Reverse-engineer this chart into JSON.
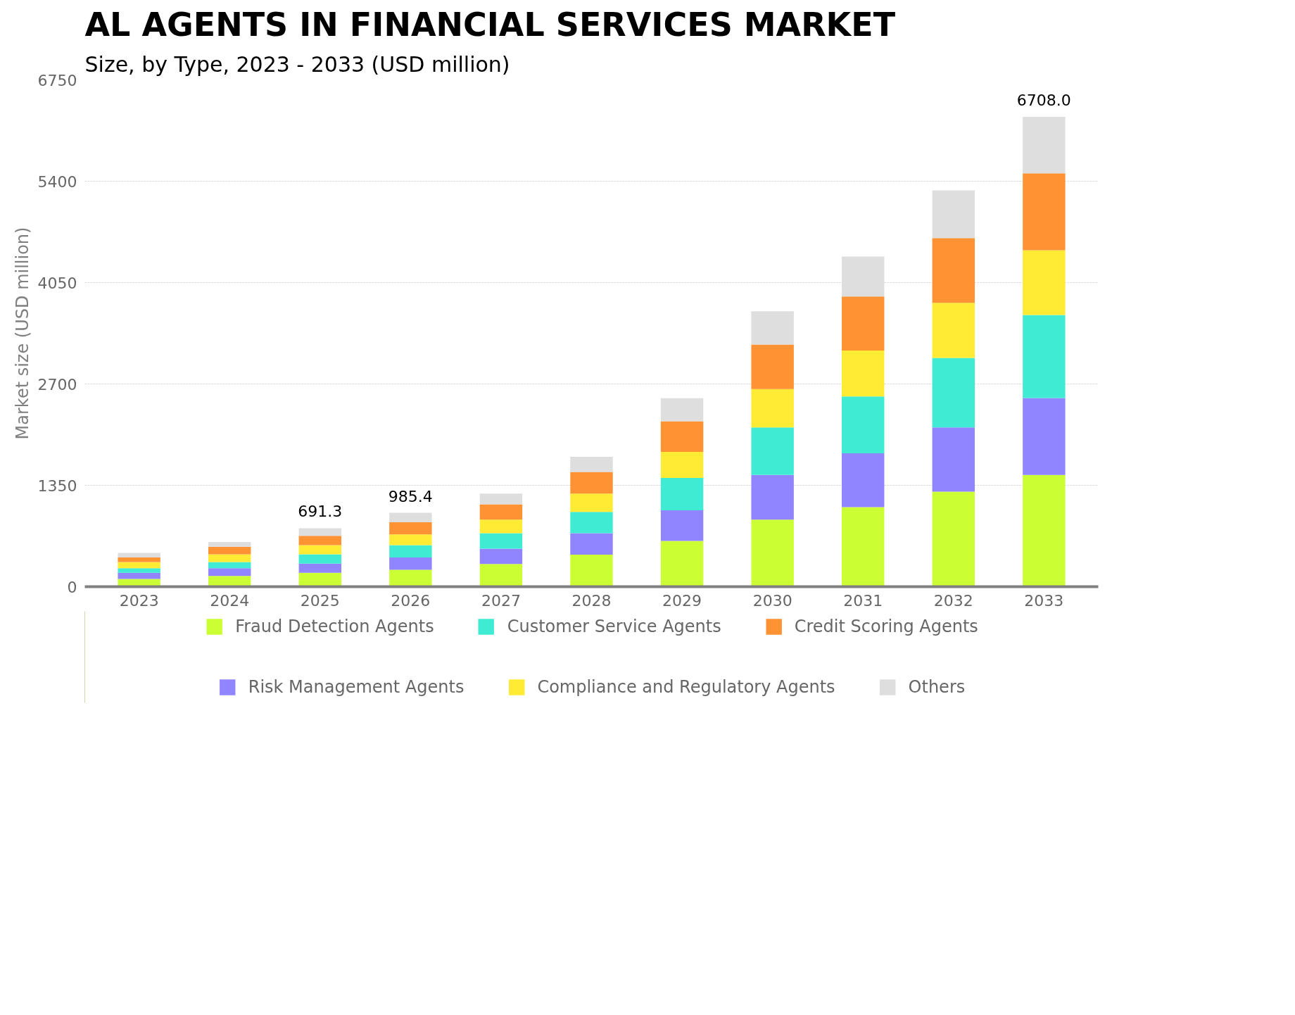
{
  "chart_data": {
    "type": "bar",
    "title": "AL AGENTS IN FINANCIAL SERVICES MARKET",
    "subtitle": "Size, by Type, 2023 - 2033 (USD million)",
    "ylabel": "Market size (USD million)",
    "categories": [
      "2023",
      "2024",
      "2025",
      "2026",
      "2027",
      "2028",
      "2029",
      "2030",
      "2031",
      "2032",
      "2033"
    ],
    "stacked": true,
    "ylim": [
      0,
      6750
    ],
    "yticks": [
      0,
      1350,
      2700,
      4050,
      5400,
      6750
    ],
    "grid": "y",
    "legend": "bottom",
    "series": [
      {
        "name": "Fraud Detection Agents",
        "color": "#ccff33",
        "values": [
          103,
          144,
          185,
          226,
          303,
          427,
          609,
          894,
          1059,
          1265,
          1488
        ]
      },
      {
        "name": "Risk Management Agents",
        "color": "#9185ff",
        "values": [
          82,
          102,
          123,
          164,
          204,
          285,
          409,
          595,
          718,
          857,
          1024
        ]
      },
      {
        "name": "Customer Service Agents",
        "color": "#40ebd4",
        "values": [
          61,
          82,
          123,
          164,
          205,
          284,
          431,
          631,
          757,
          924,
          1107
        ]
      },
      {
        "name": "Compliance and Regulatory Agents",
        "color": "#ffeb33",
        "values": [
          82,
          103,
          123,
          143,
          182,
          245,
          346,
          511,
          612,
          735,
          862
        ]
      },
      {
        "name": "Credit Scoring Agents",
        "color": "#ff9233",
        "values": [
          62,
          102,
          123,
          164,
          204,
          288,
          409,
          593,
          718,
          862,
          1024
        ]
      },
      {
        "name": "Others",
        "color": "#dedede",
        "values": [
          61,
          62,
          102,
          123,
          143,
          201,
          307,
          445,
          534,
          634,
          753
        ]
      }
    ],
    "annotations": [
      {
        "text": "691.3",
        "x": "2025",
        "y": 779
      },
      {
        "text": "985.4",
        "x": "2026",
        "y": 984
      },
      {
        "text": "6708.0",
        "x": "2033",
        "y": 6258
      }
    ]
  }
}
